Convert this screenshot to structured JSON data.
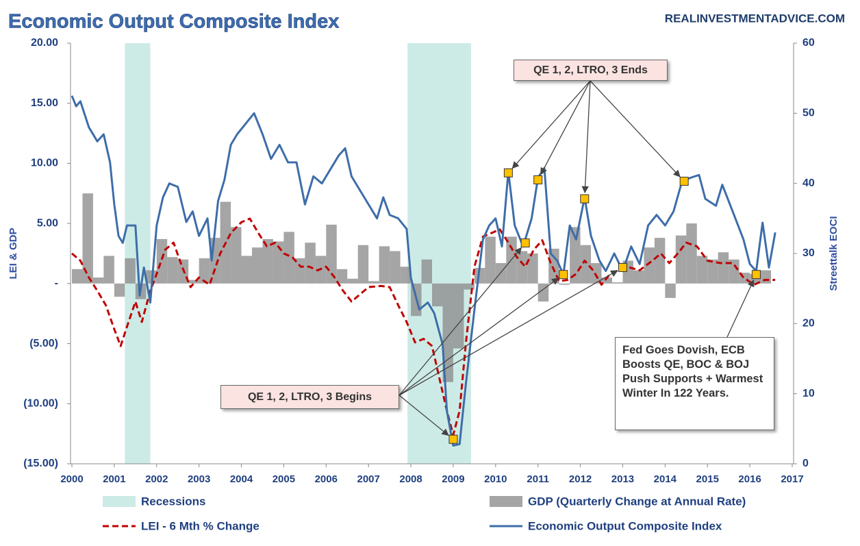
{
  "chart_data": {
    "type": "combo",
    "title": "Economic Output Composite Index",
    "source": "REALINVESTMENTADVICE.COM",
    "y_label": "LEI & GDP",
    "y2_label": "Streettalk EOCI",
    "xlim": [
      2000,
      2017
    ],
    "xticks": [
      2000,
      2001,
      2002,
      2003,
      2004,
      2005,
      2006,
      2007,
      2008,
      2009,
      2010,
      2011,
      2012,
      2013,
      2014,
      2015,
      2016,
      2017
    ],
    "ylim": [
      -15,
      20
    ],
    "yticks": [
      {
        "value": 20,
        "label": "20.00"
      },
      {
        "value": 15,
        "label": "15.00"
      },
      {
        "value": 10,
        "label": "10.00"
      },
      {
        "value": 5,
        "label": "5.00"
      },
      {
        "value": 0,
        "label": "-"
      },
      {
        "value": -5,
        "label": "(5.00)"
      },
      {
        "value": -10,
        "label": "(10.00)"
      },
      {
        "value": -15,
        "label": "(15.00)"
      }
    ],
    "y2lim": [
      0,
      60
    ],
    "y2ticks": [
      0,
      10,
      20,
      30,
      40,
      50,
      60
    ],
    "series": [
      {
        "name": "Recessions",
        "type": "band",
        "color": "#cdebe6",
        "ranges": [
          [
            2001.25,
            2001.85
          ],
          [
            2007.92,
            2009.42
          ]
        ]
      },
      {
        "name": "GDP (Quarterly Change at Annual Rate)",
        "type": "bar",
        "color": "#8f8f8f",
        "x": [
          2000,
          2000.25,
          2000.5,
          2000.75,
          2001,
          2001.25,
          2001.5,
          2001.75,
          2002,
          2002.25,
          2002.5,
          2002.75,
          2003,
          2003.25,
          2003.5,
          2003.75,
          2004,
          2004.25,
          2004.5,
          2004.75,
          2005,
          2005.25,
          2005.5,
          2005.75,
          2006,
          2006.25,
          2006.5,
          2006.75,
          2007,
          2007.25,
          2007.5,
          2007.75,
          2008,
          2008.25,
          2008.5,
          2008.75,
          2009,
          2009.25,
          2009.5,
          2009.75,
          2010,
          2010.25,
          2010.5,
          2010.75,
          2011,
          2011.25,
          2011.5,
          2011.75,
          2012,
          2012.25,
          2012.5,
          2012.75,
          2013,
          2013.25,
          2013.5,
          2013.75,
          2014,
          2014.25,
          2014.5,
          2014.75,
          2015,
          2015.25,
          2015.5,
          2015.75,
          2016,
          2016.25
        ],
        "values": [
          1.2,
          7.5,
          0.5,
          2.3,
          -1.1,
          2.1,
          -1.3,
          1.1,
          3.7,
          2.2,
          2.0,
          0.3,
          2.1,
          3.8,
          6.8,
          4.7,
          2.3,
          3.0,
          3.7,
          3.5,
          4.3,
          2.1,
          3.4,
          2.3,
          4.9,
          1.2,
          0.4,
          3.2,
          0.2,
          3.1,
          2.7,
          1.4,
          -2.7,
          2.0,
          -1.9,
          -8.2,
          -5.4,
          -0.5,
          1.3,
          3.9,
          1.7,
          3.9,
          2.7,
          2.5,
          -1.5,
          2.9,
          -0.1,
          4.7,
          3.2,
          1.7,
          0.5,
          0.1,
          1.9,
          1.1,
          3.0,
          3.8,
          -1.2,
          4.0,
          5.0,
          2.3,
          2.0,
          2.6,
          2.0,
          0.9,
          0.8,
          1.1
        ]
      },
      {
        "name": "LEI - 6 Mth % Change",
        "type": "line",
        "dashed": true,
        "color": "#c00000",
        "x": [
          2000,
          2000.2,
          2000.4,
          2000.6,
          2000.8,
          2001,
          2001.15,
          2001.3,
          2001.5,
          2001.65,
          2001.85,
          2002,
          2002.2,
          2002.4,
          2002.6,
          2002.8,
          2003,
          2003.25,
          2003.5,
          2003.75,
          2004,
          2004.2,
          2004.4,
          2004.6,
          2004.8,
          2005,
          2005.2,
          2005.4,
          2005.6,
          2005.8,
          2006,
          2006.2,
          2006.4,
          2006.6,
          2006.8,
          2007,
          2007.3,
          2007.5,
          2007.7,
          2007.9,
          2008.1,
          2008.3,
          2008.5,
          2008.7,
          2008.85,
          2009,
          2009.15,
          2009.3,
          2009.5,
          2009.7,
          2009.9,
          2010.1,
          2010.3,
          2010.5,
          2010.7,
          2010.9,
          2011.1,
          2011.3,
          2011.5,
          2011.7,
          2011.9,
          2012.1,
          2012.3,
          2012.5,
          2012.7,
          2012.9,
          2013.1,
          2013.4,
          2013.7,
          2013.9,
          2014.1,
          2014.3,
          2014.5,
          2014.75,
          2015,
          2015.3,
          2015.6,
          2015.85,
          2016.1,
          2016.35,
          2016.6
        ],
        "values": [
          2.5,
          1.9,
          0.5,
          -0.6,
          -1.8,
          -3.8,
          -5.2,
          -3.6,
          -1.5,
          -3.2,
          -0.6,
          0.8,
          2.8,
          3.4,
          1.4,
          -0.3,
          0.5,
          -0.1,
          2.5,
          4.2,
          5.1,
          5.4,
          4.2,
          3.1,
          3.4,
          2.5,
          2.2,
          1.4,
          1.4,
          1.1,
          1.4,
          0.5,
          -0.6,
          -1.5,
          -0.9,
          -0.3,
          -0.2,
          -0.3,
          -1.8,
          -3.2,
          -4.9,
          -4.6,
          -5.2,
          -8.3,
          -10.6,
          -12.6,
          -10.6,
          -4.9,
          1.4,
          3.9,
          4.2,
          4.5,
          3.4,
          2.2,
          1.4,
          2.8,
          3.6,
          1.7,
          0.2,
          0.3,
          0.8,
          1.9,
          1.1,
          -0.1,
          0.8,
          1.1,
          1.4,
          1.1,
          1.9,
          2.5,
          1.7,
          2.5,
          3.4,
          3.1,
          1.9,
          1.7,
          1.7,
          0.5,
          -0.1,
          0.3,
          0.3
        ]
      },
      {
        "name": "Economic Output Composite Index",
        "type": "line",
        "axis": "y2",
        "color": "#3d6da9",
        "x": [
          2000,
          2000.1,
          2000.2,
          2000.4,
          2000.6,
          2000.75,
          2000.9,
          2001,
          2001.1,
          2001.2,
          2001.3,
          2001.5,
          2001.6,
          2001.7,
          2001.85,
          2002,
          2002.15,
          2002.3,
          2002.5,
          2002.7,
          2002.85,
          2003,
          2003.2,
          2003.3,
          2003.45,
          2003.6,
          2003.75,
          2003.9,
          2004.1,
          2004.3,
          2004.5,
          2004.7,
          2004.9,
          2005.1,
          2005.3,
          2005.5,
          2005.7,
          2005.9,
          2006.1,
          2006.3,
          2006.45,
          2006.6,
          2006.8,
          2007,
          2007.2,
          2007.35,
          2007.5,
          2007.7,
          2007.9,
          2008,
          2008.2,
          2008.4,
          2008.55,
          2008.75,
          2008.85,
          2009,
          2009.15,
          2009.3,
          2009.5,
          2009.7,
          2009.85,
          2010,
          2010.15,
          2010.3,
          2010.45,
          2010.65,
          2010.85,
          2011,
          2011.15,
          2011.3,
          2011.45,
          2011.6,
          2011.75,
          2011.9,
          2012.1,
          2012.25,
          2012.45,
          2012.6,
          2012.8,
          2013,
          2013.2,
          2013.4,
          2013.6,
          2013.8,
          2014,
          2014.2,
          2014.4,
          2014.6,
          2014.8,
          2014.95,
          2015.2,
          2015.35,
          2015.6,
          2015.85,
          2016,
          2016.15,
          2016.3,
          2016.45,
          2016.6
        ],
        "values": [
          52.5,
          51,
          51.7,
          48,
          46,
          47,
          43,
          37,
          32.5,
          31.5,
          34,
          34,
          24,
          28,
          23,
          34,
          38,
          40,
          39.5,
          34.5,
          36,
          32.5,
          35,
          29,
          37.5,
          40.5,
          45.5,
          47,
          48.5,
          50,
          47,
          43.5,
          45.5,
          43,
          43,
          37,
          41,
          40,
          42,
          44,
          45,
          41,
          39,
          37,
          35,
          38,
          35.5,
          35,
          33.5,
          26.5,
          22,
          23,
          21.5,
          17,
          7.5,
          2.6,
          2.8,
          11.5,
          22,
          32,
          34,
          35,
          31,
          41.7,
          34,
          31,
          35,
          40.8,
          42.2,
          30,
          29,
          27,
          34,
          32,
          38,
          32.5,
          29,
          27.5,
          30,
          27.5,
          31,
          28.5,
          34,
          35.5,
          34,
          36,
          40.3,
          40.8,
          41.2,
          37.8,
          36.8,
          39.8,
          35.9,
          32,
          28.5,
          27.5,
          34.4,
          28,
          33
        ]
      }
    ],
    "marker_color": "#ffc000",
    "annotations": [
      {
        "text": "QE 1, 2, LTRO, 3 Ends",
        "points": [
          {
            "x": 2010.3,
            "y": 41.5
          },
          {
            "x": 2011.0,
            "y": 40.5
          },
          {
            "x": 2012.1,
            "y": 37.8
          },
          {
            "x": 2014.45,
            "y": 40.3
          }
        ]
      },
      {
        "text": "QE 1, 2, LTRO, 3 Begins",
        "points": [
          {
            "x": 2009.0,
            "y": 3.5
          },
          {
            "x": 2010.7,
            "y": 31.5
          },
          {
            "x": 2011.6,
            "y": 27
          },
          {
            "x": 2013.0,
            "y": 28
          }
        ]
      },
      {
        "text": "Fed Goes Dovish, ECB Boosts QE, BOC & BOJ Push Supports + Warmest Winter In 122 Years.",
        "points": [
          {
            "x": 2016.15,
            "y": 27
          }
        ]
      }
    ]
  }
}
